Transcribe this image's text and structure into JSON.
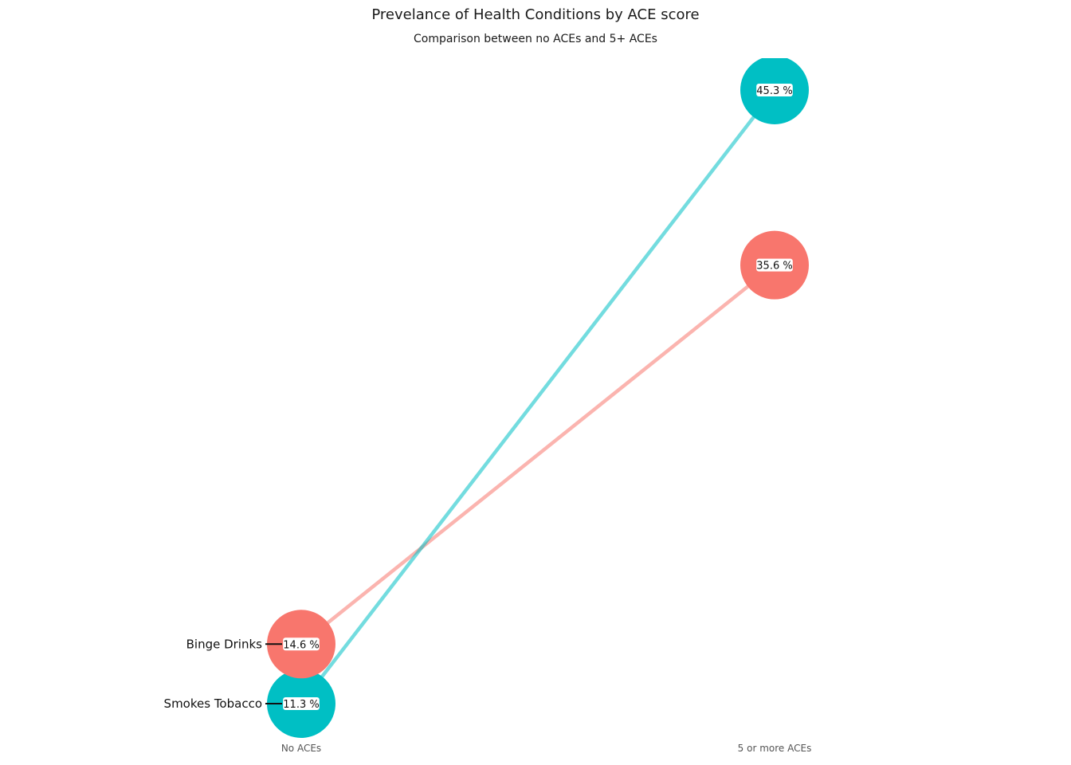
{
  "chart_data": {
    "type": "line",
    "chart_kind": "slope",
    "title": "Prevelance of Health Conditions by ACE score",
    "subtitle": "Comparison between no ACEs and 5+ ACEs",
    "categories": [
      "No ACEs",
      "5 or more ACEs"
    ],
    "series": [
      {
        "name": "Binge Drinks",
        "values": [
          14.6,
          35.6
        ],
        "labels": [
          "14.6 %",
          "35.6 %"
        ],
        "color": "#F8766D"
      },
      {
        "name": "Smokes Tobacco",
        "values": [
          11.3,
          45.3
        ],
        "labels": [
          "11.3 %",
          "45.3 %"
        ],
        "color": "#00BFC4"
      }
    ],
    "grid": false,
    "legend": "none"
  }
}
